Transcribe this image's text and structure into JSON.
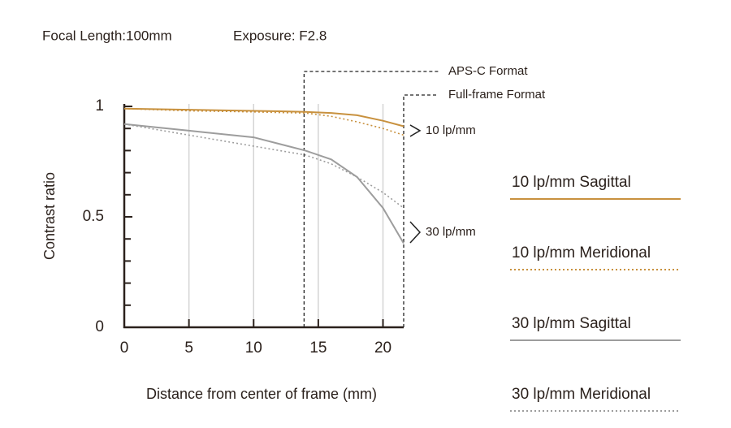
{
  "chart_data": {
    "type": "line",
    "title_parts": [
      "Focal Length:100mm",
      "Exposure: F2.8"
    ],
    "ylabel": "Contrast ratio",
    "xlabel": "Distance from center of frame (mm)",
    "x": [
      0,
      5,
      10,
      12,
      14,
      16,
      18,
      20,
      21.6
    ],
    "series": [
      {
        "name": "10 lp/mm Sagittal",
        "color": "#c8913e",
        "style": "solid",
        "values": [
          0.99,
          0.985,
          0.98,
          0.978,
          0.975,
          0.97,
          0.96,
          0.935,
          0.91
        ]
      },
      {
        "name": "10 lp/mm Meridional",
        "color": "#c8913e",
        "style": "dotted",
        "values": [
          0.99,
          0.98,
          0.975,
          0.972,
          0.97,
          0.955,
          0.93,
          0.9,
          0.87
        ]
      },
      {
        "name": "30 lp/mm Sagittal",
        "color": "#9d9d9d",
        "style": "solid",
        "values": [
          0.92,
          0.89,
          0.86,
          0.83,
          0.8,
          0.76,
          0.68,
          0.54,
          0.38
        ]
      },
      {
        "name": "30 lp/mm Meridional",
        "color": "#9d9d9d",
        "style": "dotted",
        "values": [
          0.92,
          0.87,
          0.82,
          0.8,
          0.78,
          0.74,
          0.68,
          0.61,
          0.54
        ]
      }
    ],
    "xlim": [
      0,
      21.6
    ],
    "ylim": [
      0,
      1
    ],
    "xticks": [
      0,
      5,
      10,
      15,
      20
    ],
    "yticks": [
      0,
      0.5,
      1
    ],
    "yminor_ticks": [
      0.1,
      0.2,
      0.3,
      0.4,
      0.6,
      0.7,
      0.8,
      0.9
    ],
    "grid": true,
    "formats": [
      {
        "label": "APS-C Format",
        "x": 13.9
      },
      {
        "label": "Full-frame Format",
        "x": 21.6
      }
    ],
    "groups": [
      {
        "label": "10 lp/mm",
        "y": 0.89
      },
      {
        "label": "30 lp/mm",
        "y": 0.43
      }
    ]
  }
}
